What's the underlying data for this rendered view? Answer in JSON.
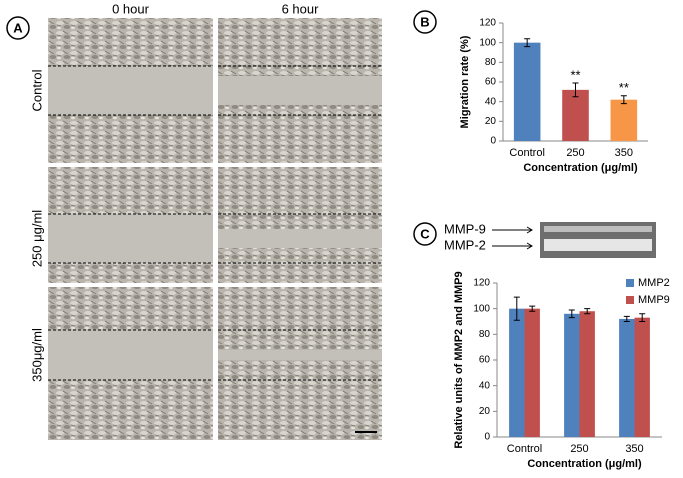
{
  "panel_labels": [
    "A",
    "B",
    "C"
  ],
  "micrographs": {
    "columns": [
      "0 hour",
      "6 hour"
    ],
    "rows": [
      "Control",
      "250 μg/ml",
      "350μg/ml"
    ]
  },
  "blot": {
    "labels": [
      "MMP-9",
      "MMP-2"
    ]
  },
  "chart_data": [
    {
      "type": "bar",
      "categories": [
        "Control",
        "250",
        "350"
      ],
      "values": [
        100,
        52,
        42
      ],
      "errors": [
        4,
        7,
        4
      ],
      "value_annotations": [
        null,
        "**",
        "**"
      ],
      "colors": [
        "#4f81bd",
        "#c0504d",
        "#f79646"
      ],
      "ylabel": "Migration rate (%)",
      "xlabel": "Concentration (μg/ml)",
      "ylim": [
        0,
        120
      ],
      "yticks": [
        0,
        20,
        40,
        60,
        80,
        100,
        120
      ]
    },
    {
      "type": "bar",
      "categories": [
        "Control",
        "250",
        "350"
      ],
      "series": [
        {
          "name": "MMP2",
          "color": "#4f81bd",
          "values": [
            100,
            96,
            92
          ],
          "errors": [
            9,
            3,
            2
          ]
        },
        {
          "name": "MMP9",
          "color": "#c0504d",
          "values": [
            100,
            98,
            93
          ],
          "errors": [
            2,
            2,
            3
          ]
        }
      ],
      "ylabel": "Relative units of MMP2 and MMP9",
      "xlabel": "Concentration (μg/ml)",
      "ylim": [
        0,
        120
      ],
      "yticks": [
        0,
        20,
        40,
        60,
        80,
        100,
        120
      ],
      "legend": "top-right"
    }
  ]
}
